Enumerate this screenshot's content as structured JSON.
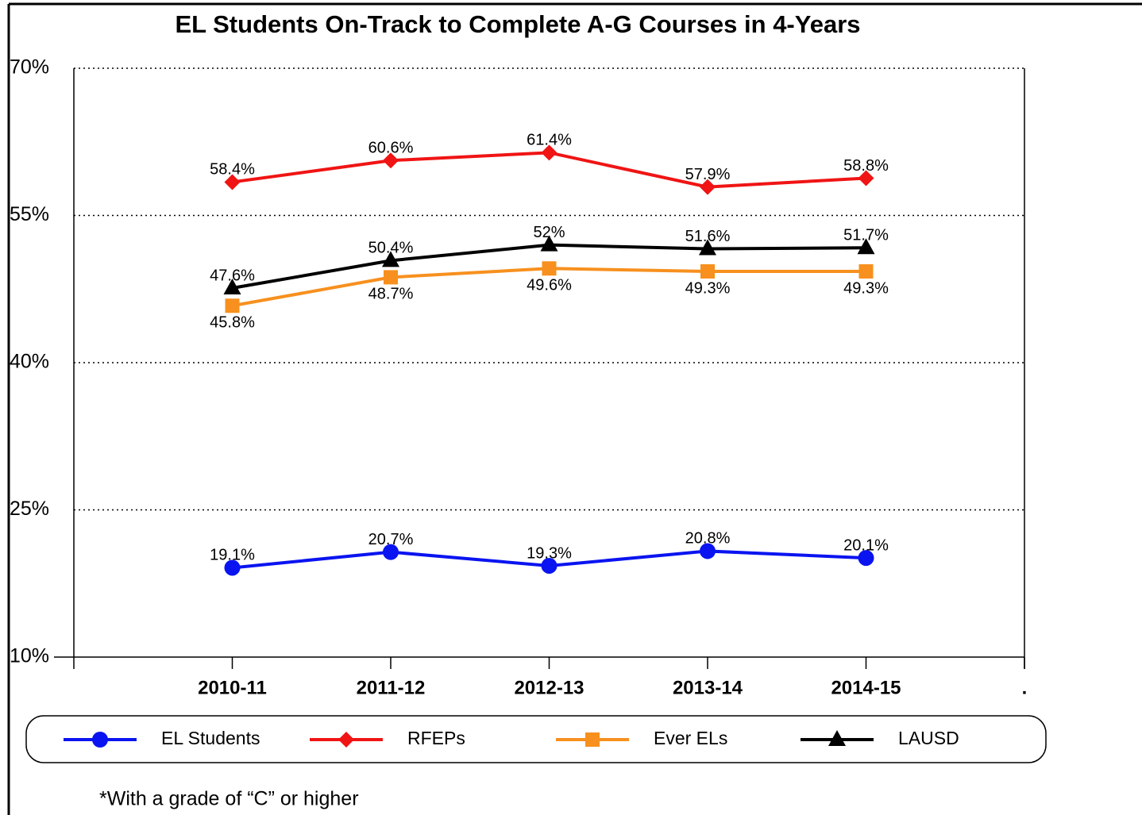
{
  "chart_data": {
    "type": "line",
    "title": "EL Students On-Track to Complete A-G Courses in 4-Years",
    "categories": [
      "2010-11",
      "2011-12",
      "2012-13",
      "2013-14",
      "2014-15",
      "."
    ],
    "series": [
      {
        "name": "EL Students",
        "color": "#0a14f0",
        "marker": "circle",
        "values": [
          19.1,
          20.7,
          19.3,
          20.8,
          20.1,
          null
        ],
        "value_labels": [
          "19.1%",
          "20.7%",
          "19.3%",
          "20.8%",
          "20.1%",
          null
        ]
      },
      {
        "name": "RFEPs",
        "color": "#f01414",
        "marker": "diamond",
        "values": [
          58.4,
          60.6,
          61.4,
          57.9,
          58.8,
          null
        ],
        "value_labels": [
          "58.4%",
          "60.6%",
          "61.4%",
          "57.9%",
          "58.8%",
          null
        ]
      },
      {
        "name": "Ever ELs",
        "color": "#f7901e",
        "marker": "square",
        "values": [
          45.8,
          48.7,
          49.6,
          49.3,
          49.3,
          null
        ],
        "value_labels": [
          "45.8%",
          "48.7%",
          "49.6%",
          "49.3%",
          "49.3%",
          null
        ]
      },
      {
        "name": "LAUSD",
        "color": "#000000",
        "marker": "triangle",
        "values": [
          47.6,
          50.4,
          52,
          51.6,
          51.7,
          null
        ],
        "value_labels": [
          "47.6%",
          "50.4%",
          "52%",
          "51.6%",
          "51.7%",
          null
        ]
      }
    ],
    "ylim": [
      10,
      70
    ],
    "yticks": [
      {
        "value": 10,
        "label": "10%"
      },
      {
        "value": 25,
        "label": "25%"
      },
      {
        "value": 40,
        "label": "40%"
      },
      {
        "value": 55,
        "label": "55%"
      },
      {
        "value": 70,
        "label": "70%"
      }
    ],
    "grid": true,
    "legend": "bottom",
    "footnote": "*With a grade of “C” or higher"
  }
}
